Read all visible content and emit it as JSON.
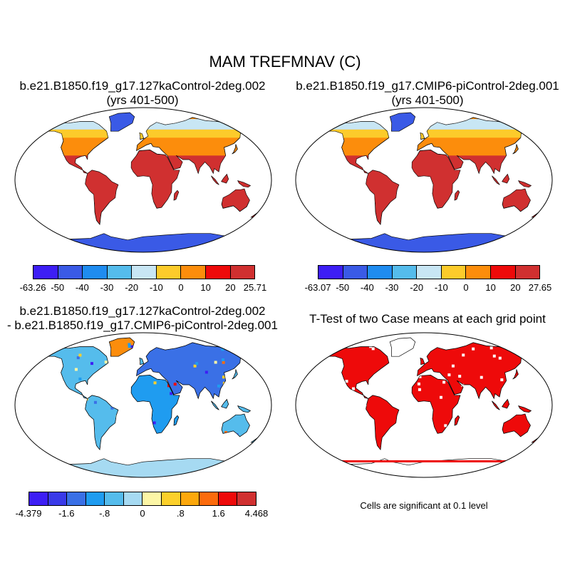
{
  "main_title": "MAM TREFMNAV (C)",
  "panels": [
    {
      "id": "case1",
      "title_line1": "b.e21.B1850.f19_g17.127kaControl-2deg.002",
      "title_line2": "(yrs 401-500)",
      "legend": {
        "colors": [
          "#3d1ef5",
          "#3a5ae6",
          "#1f8cf0",
          "#55bcec",
          "#c8e6f4",
          "#fccb2b",
          "#fc8d0c",
          "#ee0a0a",
          "#d03030"
        ],
        "labels": [
          "-63.26",
          "-50",
          "-40",
          "-30",
          "-20",
          "-10",
          "0",
          "10",
          "20",
          "25.71"
        ]
      }
    },
    {
      "id": "case2",
      "title_line1": "b.e21.B1850.f19_g17.CMIP6-piControl-2deg.001",
      "title_line2": "(yrs 401-500)",
      "legend": {
        "colors": [
          "#3d1ef5",
          "#3a5ae6",
          "#1f8cf0",
          "#55bcec",
          "#c8e6f4",
          "#fccb2b",
          "#fc8d0c",
          "#ee0a0a",
          "#d03030"
        ],
        "labels": [
          "-63.07",
          "-50",
          "-40",
          "-30",
          "-20",
          "-10",
          "0",
          "10",
          "20",
          "27.65"
        ]
      }
    },
    {
      "id": "diff",
      "title_line1": "b.e21.B1850.f19_g17.127kaControl-2deg.002",
      "title_line2": "- b.e21.B1850.f19_g17.CMIP6-piControl-2deg.001",
      "legend": {
        "colors": [
          "#3d1ef5",
          "#3a3ae8",
          "#3a70e6",
          "#1f9cf0",
          "#55bcec",
          "#a6daf2",
          "#fcf6a6",
          "#fcd02b",
          "#fca80c",
          "#fc6b0c",
          "#ee0a0a",
          "#d03030"
        ],
        "labels": [
          "-4.379",
          "-1.6",
          "-.8",
          "0",
          ".8",
          "1.6",
          "4.468"
        ]
      }
    },
    {
      "id": "ttest",
      "title_line1": "T-Test of two Case means at each grid point",
      "note": "Cells are significant at 0.1 level"
    }
  ]
}
